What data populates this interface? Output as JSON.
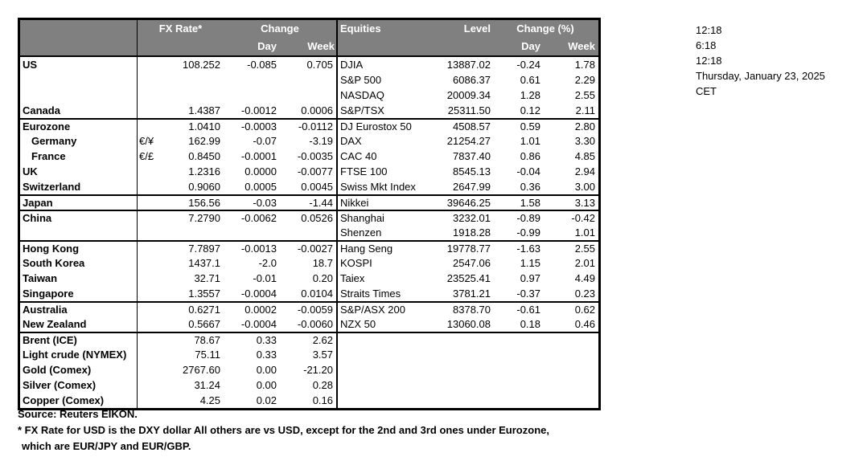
{
  "colors": {
    "header_bg": "#808080",
    "header_text": "#ffffff",
    "border": "#000000",
    "text": "#000000",
    "background": "#ffffff"
  },
  "header": {
    "fx_rate": "FX Rate*",
    "change": "Change",
    "day": "Day",
    "week": "Week",
    "equities": "Equities",
    "level": "Level",
    "change_pct": "Change (%)"
  },
  "info": {
    "lines": [
      "12:18",
      "6:18",
      "12:18",
      "Thursday, January 23, 2025",
      "CET"
    ]
  },
  "footnotes": {
    "source": "Source:  Reuters EIKON.",
    "note1": "* FX Rate for USD is the DXY dollar  All others are vs USD, except for the 2nd and 3rd ones under Eurozone,",
    "note2": "which are EUR/JPY and EUR/GBP."
  },
  "table": {
    "rows": [
      {
        "sep": false,
        "fx": {
          "label": "US",
          "indent": false,
          "pair": "",
          "rate": "108.252",
          "day": "-0.085",
          "week": "0.705"
        },
        "eq": {
          "label": "DJIA",
          "level": "13887.02",
          "day": "-0.24",
          "week": "1.78"
        }
      },
      {
        "sep": false,
        "fx": {
          "label": "",
          "indent": false,
          "pair": "",
          "rate": "",
          "day": "",
          "week": ""
        },
        "eq": {
          "label": "S&P 500",
          "level": "6086.37",
          "day": "0.61",
          "week": "2.29"
        }
      },
      {
        "sep": false,
        "fx": {
          "label": "",
          "indent": false,
          "pair": "",
          "rate": "",
          "day": "",
          "week": ""
        },
        "eq": {
          "label": "NASDAQ",
          "level": "20009.34",
          "day": "1.28",
          "week": "2.55"
        }
      },
      {
        "sep": false,
        "fx": {
          "label": "Canada",
          "indent": false,
          "pair": "",
          "rate": "1.4387",
          "day": "-0.0012",
          "week": "0.0006"
        },
        "eq": {
          "label": "S&P/TSX",
          "level": "25311.50",
          "day": "0.12",
          "week": "2.11"
        }
      },
      {
        "sep": true,
        "fx": {
          "label": "Eurozone",
          "indent": false,
          "pair": "",
          "rate": "1.0410",
          "day": "-0.0003",
          "week": "-0.0112"
        },
        "eq": {
          "label": "DJ Eurostox 50",
          "level": "4508.57",
          "day": "0.59",
          "week": "2.80"
        }
      },
      {
        "sep": false,
        "fx": {
          "label": "Germany",
          "indent": true,
          "pair": "€/¥",
          "rate": "162.99",
          "day": "-0.07",
          "week": "-3.19"
        },
        "eq": {
          "label": "DAX",
          "level": "21254.27",
          "day": "1.01",
          "week": "3.30"
        }
      },
      {
        "sep": false,
        "fx": {
          "label": "France",
          "indent": true,
          "pair": "€/£",
          "rate": "0.8450",
          "day": "-0.0001",
          "week": "-0.0035"
        },
        "eq": {
          "label": "CAC 40",
          "level": "7837.40",
          "day": "0.86",
          "week": "4.85"
        }
      },
      {
        "sep": false,
        "fx": {
          "label": "UK",
          "indent": false,
          "pair": "",
          "rate": "1.2316",
          "day": "0.0000",
          "week": "-0.0077"
        },
        "eq": {
          "label": "FTSE 100",
          "level": "8545.13",
          "day": "-0.04",
          "week": "2.94"
        }
      },
      {
        "sep": false,
        "fx": {
          "label": "Switzerland",
          "indent": false,
          "pair": "",
          "rate": "0.9060",
          "day": "0.0005",
          "week": "0.0045"
        },
        "eq": {
          "label": "Swiss Mkt Index",
          "level": "2647.99",
          "day": "0.36",
          "week": "3.00"
        }
      },
      {
        "sep": true,
        "fx": {
          "label": "Japan",
          "indent": false,
          "pair": "",
          "rate": "156.56",
          "day": "-0.03",
          "week": "-1.44"
        },
        "eq": {
          "label": "Nikkei",
          "level": "39646.25",
          "day": "1.58",
          "week": "3.13"
        }
      },
      {
        "sep": true,
        "fx": {
          "label": "China",
          "indent": false,
          "pair": "",
          "rate": "7.2790",
          "day": "-0.0062",
          "week": "0.0526"
        },
        "eq": {
          "label": "Shanghai",
          "level": "3232.01",
          "day": "-0.89",
          "week": "-0.42"
        }
      },
      {
        "sep": false,
        "fx": {
          "label": "",
          "indent": false,
          "pair": "",
          "rate": "",
          "day": "",
          "week": ""
        },
        "eq": {
          "label": "Shenzen",
          "level": "1918.28",
          "day": "-0.99",
          "week": "1.01"
        }
      },
      {
        "sep": true,
        "fx": {
          "label": "Hong Kong",
          "indent": false,
          "pair": "",
          "rate": "7.7897",
          "day": "-0.0013",
          "week": "-0.0027"
        },
        "eq": {
          "label": "Hang Seng",
          "level": "19778.77",
          "day": "-1.63",
          "week": "2.55"
        }
      },
      {
        "sep": false,
        "fx": {
          "label": "South Korea",
          "indent": false,
          "pair": "",
          "rate": "1437.1",
          "day": "-2.0",
          "week": "18.7"
        },
        "eq": {
          "label": "KOSPI",
          "level": "2547.06",
          "day": "1.15",
          "week": "2.01"
        }
      },
      {
        "sep": false,
        "fx": {
          "label": "Taiwan",
          "indent": false,
          "pair": "",
          "rate": "32.71",
          "day": "-0.01",
          "week": "0.20"
        },
        "eq": {
          "label": "Taiex",
          "level": "23525.41",
          "day": "0.97",
          "week": "4.49"
        }
      },
      {
        "sep": false,
        "fx": {
          "label": "Singapore",
          "indent": false,
          "pair": "",
          "rate": "1.3557",
          "day": "-0.0004",
          "week": "0.0104"
        },
        "eq": {
          "label": "Straits Times",
          "level": "3781.21",
          "day": "-0.37",
          "week": "0.23"
        }
      },
      {
        "sep": true,
        "fx": {
          "label": "Australia",
          "indent": false,
          "pair": "",
          "rate": "0.6271",
          "day": "0.0002",
          "week": "-0.0059"
        },
        "eq": {
          "label": "S&P/ASX  200",
          "level": "8378.70",
          "day": "-0.61",
          "week": "0.62"
        }
      },
      {
        "sep": false,
        "fx": {
          "label": "New Zealand",
          "indent": false,
          "pair": "",
          "rate": "0.5667",
          "day": "-0.0004",
          "week": "-0.0060"
        },
        "eq": {
          "label": "NZX 50",
          "level": "13060.08",
          "day": "0.18",
          "week": "0.46"
        }
      },
      {
        "sep": true,
        "fx": {
          "label": "Brent (ICE)",
          "indent": false,
          "pair": "",
          "rate": "78.67",
          "day": "0.33",
          "week": "2.62"
        },
        "eq": {
          "label": "",
          "level": "",
          "day": "",
          "week": ""
        }
      },
      {
        "sep": false,
        "fx": {
          "label": "Light crude (NYMEX)",
          "indent": false,
          "pair": "",
          "rate": "75.11",
          "day": "0.33",
          "week": "3.57"
        },
        "eq": {
          "label": "",
          "level": "",
          "day": "",
          "week": ""
        }
      },
      {
        "sep": false,
        "fx": {
          "label": "Gold (Comex)",
          "indent": false,
          "pair": "",
          "rate": "2767.60",
          "day": "0.00",
          "week": "-21.20"
        },
        "eq": {
          "label": "",
          "level": "",
          "day": "",
          "week": ""
        }
      },
      {
        "sep": false,
        "fx": {
          "label": "Silver (Comex)",
          "indent": false,
          "pair": "",
          "rate": "31.24",
          "day": "0.00",
          "week": "0.28"
        },
        "eq": {
          "label": "",
          "level": "",
          "day": "",
          "week": ""
        }
      },
      {
        "sep": false,
        "fx": {
          "label": "Copper (Comex)",
          "indent": false,
          "pair": "",
          "rate": "4.25",
          "day": "0.02",
          "week": "0.16"
        },
        "eq": {
          "label": "",
          "level": "",
          "day": "",
          "week": ""
        }
      }
    ]
  }
}
